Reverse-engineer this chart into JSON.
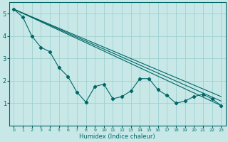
{
  "xlabel": "Humidex (Indice chaleur)",
  "background_color": "#c8e8e8",
  "grid_color": "#99cccc",
  "line_color": "#006666",
  "xlim": [
    -0.5,
    23.5
  ],
  "ylim": [
    0,
    5.5
  ],
  "yticks": [
    1,
    2,
    3,
    4,
    5
  ],
  "xticks": [
    0,
    1,
    2,
    3,
    4,
    5,
    6,
    7,
    8,
    9,
    10,
    11,
    12,
    13,
    14,
    15,
    16,
    17,
    18,
    19,
    20,
    21,
    22,
    23
  ],
  "series_lines": [
    {
      "x": [
        0,
        1
      ],
      "y": [
        5.2,
        4.85
      ]
    },
    {
      "x": [
        0,
        2,
        3
      ],
      "y": [
        5.2,
        4.0,
        3.5
      ]
    },
    {
      "x": [
        0,
        3,
        4,
        5
      ],
      "y": [
        5.2,
        3.5,
        3.3,
        2.6
      ]
    },
    {
      "x": [
        0,
        23
      ],
      "y": [
        5.2,
        0.9
      ]
    }
  ],
  "data_series": {
    "x": [
      0,
      1,
      2,
      3,
      4,
      5,
      6,
      7,
      8,
      9,
      10,
      11,
      12,
      13,
      14,
      15,
      16,
      17,
      18,
      19,
      20,
      21,
      22,
      23
    ],
    "y": [
      5.2,
      4.85,
      4.0,
      3.5,
      3.3,
      2.6,
      2.2,
      1.5,
      1.05,
      1.75,
      1.85,
      1.2,
      1.3,
      1.55,
      2.1,
      2.1,
      1.6,
      1.35,
      1.0,
      1.1,
      1.3,
      1.4,
      1.2,
      0.9
    ]
  },
  "smooth_lines": [
    {
      "x": [
        0,
        23
      ],
      "y": [
        5.2,
        0.9
      ]
    },
    {
      "x": [
        0,
        23
      ],
      "y": [
        5.2,
        1.1
      ]
    },
    {
      "x": [
        0,
        23
      ],
      "y": [
        5.2,
        1.3
      ]
    }
  ]
}
